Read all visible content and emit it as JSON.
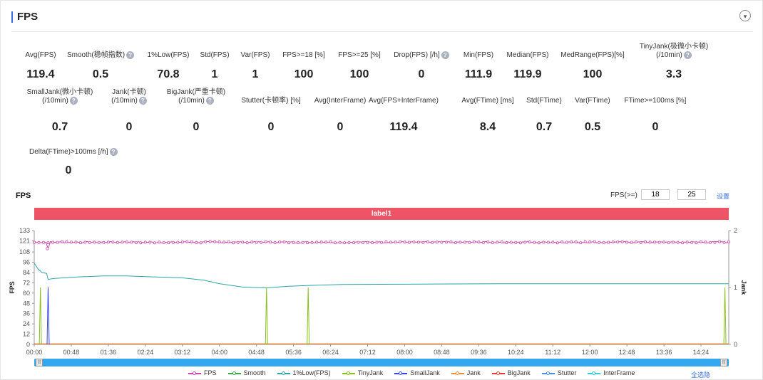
{
  "header": {
    "title": "FPS",
    "collapse_icon": "▾"
  },
  "metrics": [
    {
      "label": "Avg(FPS)",
      "value": "119.4",
      "help": false
    },
    {
      "label": "Smooth(稳帧指数)",
      "value": "0.5",
      "help": true
    },
    {
      "label": "1%Low(FPS)",
      "value": "70.8",
      "help": false
    },
    {
      "label": "Std(FPS)",
      "value": "1",
      "help": false
    },
    {
      "label": "Var(FPS)",
      "value": "1",
      "help": false
    },
    {
      "label": "FPS>=18 [%]",
      "value": "100",
      "help": false
    },
    {
      "label": "FPS>=25 [%]",
      "value": "100",
      "help": false
    },
    {
      "label": "Drop(FPS) [/h]",
      "value": "0",
      "help": true
    },
    {
      "label": "Min(FPS)",
      "value": "111.9",
      "help": false
    },
    {
      "label": "Median(FPS)",
      "value": "119.9",
      "help": false
    },
    {
      "label": "MedRange(FPS)[%]",
      "value": "100",
      "help": false
    },
    {
      "label": "TinyJank(极微小卡顿)",
      "label2": "(/10min)",
      "value": "3.3",
      "help": true
    },
    {
      "label": "SmallJank(微小卡顿)",
      "label2": "(/10min)",
      "value": "0.7",
      "help": true
    },
    {
      "label": "Jank(卡顿)",
      "label2": "(/10min)",
      "value": "0",
      "help": true
    },
    {
      "label": "BigJank(严重卡顿)",
      "label2": "(/10min)",
      "value": "0",
      "help": true
    },
    {
      "label": "Stutter(卡顿率) [%]",
      "value": "0",
      "help": false
    },
    {
      "label": "Avg(InterFrame)",
      "value": "0",
      "help": false
    },
    {
      "label": "Avg(FPS+InterFrame)",
      "value": "119.4",
      "help": false
    },
    {
      "label": "Avg(FTime) [ms]",
      "value": "8.4",
      "help": false
    },
    {
      "label": "Std(FTime)",
      "value": "0.7",
      "help": false
    },
    {
      "label": "Var(FTime)",
      "value": "0.5",
      "help": false
    },
    {
      "label": "FTime>=100ms [%]",
      "value": "0",
      "help": false
    },
    {
      "label": "Delta(FTime)>100ms [/h]",
      "value": "0",
      "help": true
    }
  ],
  "chart": {
    "title": "FPS",
    "fps_threshold_label": "FPS(>=)",
    "fps_threshold_1": "18",
    "fps_threshold_2": "25",
    "set_button": "设置",
    "label_bar": "label1",
    "fullscreen_button": "全选隐",
    "y_left_label": "FPS",
    "y_right_label": "Jank",
    "colors": {
      "FPS": "#cc44aa",
      "Smooth": "#3aa74a",
      "1%Low(FPS)": "#2aa6a6",
      "TinyJank": "#88c01a",
      "SmallJank": "#3344ee",
      "Jank": "#f08a3a",
      "BigJank": "#e83a3a",
      "Stutter": "#4a8ee8",
      "InterFrame": "#33ccdd"
    }
  },
  "chart_data": {
    "type": "line",
    "title": "FPS",
    "ylabel": "FPS",
    "ylabel_right": "Jank",
    "ylim": [
      0,
      133
    ],
    "ylim_right": [
      0,
      2
    ],
    "y_ticks": [
      0,
      12,
      24,
      36,
      48,
      60,
      72,
      84,
      96,
      108,
      121,
      133
    ],
    "y_ticks_right": [
      0,
      1,
      2
    ],
    "x_ticks": [
      "00:00",
      "00:48",
      "01:36",
      "02:24",
      "03:12",
      "04:00",
      "04:48",
      "05:36",
      "06:24",
      "07:12",
      "08:00",
      "08:48",
      "09:36",
      "10:24",
      "11:12",
      "12:00",
      "12:48",
      "13:36",
      "14:24"
    ],
    "x_range_seconds": [
      0,
      900
    ],
    "series": [
      {
        "name": "FPS",
        "axis": "left",
        "approx_value": 119.4,
        "min": 111.9,
        "dips_at_seconds": [
          17
        ]
      },
      {
        "name": "Smooth",
        "axis": "right",
        "values_constant": 0
      },
      {
        "name": "1%Low(FPS)",
        "axis": "left",
        "points": [
          [
            0,
            95
          ],
          [
            5,
            88
          ],
          [
            10,
            84
          ],
          [
            16,
            83
          ],
          [
            18,
            76
          ],
          [
            25,
            77
          ],
          [
            40,
            78
          ],
          [
            60,
            79
          ],
          [
            90,
            80
          ],
          [
            120,
            80
          ],
          [
            150,
            79
          ],
          [
            190,
            78
          ],
          [
            220,
            75
          ],
          [
            240,
            71
          ],
          [
            270,
            67
          ],
          [
            300,
            66
          ],
          [
            330,
            68
          ],
          [
            360,
            69
          ],
          [
            400,
            70
          ],
          [
            500,
            70.5
          ],
          [
            600,
            70.8
          ],
          [
            700,
            70.8
          ],
          [
            800,
            70.8
          ],
          [
            900,
            70.8
          ]
        ]
      },
      {
        "name": "TinyJank",
        "axis": "right",
        "spikes_at_seconds": [
          8,
          301,
          355,
          895
        ]
      },
      {
        "name": "SmallJank",
        "axis": "right",
        "spikes_at_seconds": [
          18
        ]
      },
      {
        "name": "Jank",
        "axis": "right",
        "values_constant": 0
      },
      {
        "name": "BigJank",
        "axis": "right",
        "values_constant": 0
      },
      {
        "name": "Stutter",
        "axis": "right",
        "values_constant": 0
      },
      {
        "name": "InterFrame",
        "axis": "right",
        "values_constant": 0
      }
    ],
    "legend": [
      "FPS",
      "Smooth",
      "1%Low(FPS)",
      "TinyJank",
      "SmallJank",
      "Jank",
      "BigJank",
      "Stutter",
      "InterFrame"
    ],
    "legend_position": "bottom"
  }
}
